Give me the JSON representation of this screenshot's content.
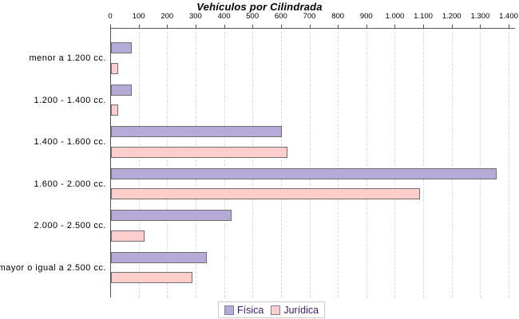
{
  "window": {
    "title": "Vehículos por Cilindrada"
  },
  "chart_data": {
    "type": "bar",
    "orientation": "horizontal",
    "title": "Vehículos por Cilindrada",
    "categories": [
      "menor a 1.200 cc.",
      "1.200 - 1.400 cc.",
      "1.400 - 1.600 cc.",
      "1.600 - 2.000 cc.",
      "2.000 - 2.500 cc.",
      "mayor o igual a 2.500 cc."
    ],
    "series": [
      {
        "name": "Física",
        "color": "#b5aad8",
        "border_color": "#6f6f6f",
        "values": [
          67,
          66,
          595,
          1350,
          417,
          330
        ]
      },
      {
        "name": "Jurídica",
        "color": "#fdcecc",
        "border_color": "#6f6f6f",
        "values": [
          20,
          19,
          615,
          1080,
          112,
          281
        ]
      }
    ],
    "xlim": [
      0,
      1400
    ],
    "x_ticks": [
      {
        "value": 0,
        "label": "0"
      },
      {
        "value": 100,
        "label": "100"
      },
      {
        "value": 200,
        "label": "200"
      },
      {
        "value": 300,
        "label": "300"
      },
      {
        "value": 400,
        "label": "400"
      },
      {
        "value": 500,
        "label": "500"
      },
      {
        "value": 600,
        "label": "600"
      },
      {
        "value": 700,
        "label": "700"
      },
      {
        "value": 800,
        "label": "800"
      },
      {
        "value": 900,
        "label": "900"
      },
      {
        "value": 1000,
        "label": "1.000"
      },
      {
        "value": 1100,
        "label": "1.100"
      },
      {
        "value": 1200,
        "label": "1.200"
      },
      {
        "value": 1300,
        "label": "1.300"
      },
      {
        "value": 1400,
        "label": "1.400"
      }
    ],
    "grid": "vertical-dashed",
    "legend_position": "bottom-center",
    "colors": {
      "axis": "#545454",
      "grid": "#d8d8d8",
      "text": "#000000",
      "legend_text": "#3c1970",
      "legend_border": "#cccccc"
    }
  }
}
